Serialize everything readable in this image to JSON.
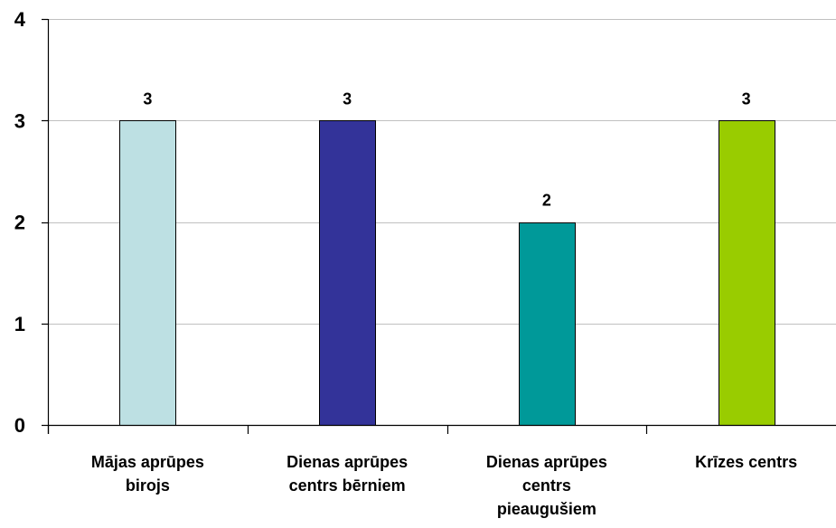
{
  "chart_data": {
    "type": "bar",
    "categories": [
      [
        "Mājas aprūpes",
        "birojs"
      ],
      [
        "Dienas aprūpes",
        "centrs bērniem"
      ],
      [
        "Dienas aprūpes",
        "centrs",
        "pieaugušiem"
      ],
      [
        "Krīzes centrs"
      ]
    ],
    "values": [
      3,
      3,
      2,
      3
    ],
    "data_labels": [
      "3",
      "3",
      "2",
      "3"
    ],
    "bar_colors": [
      "#bde0e3",
      "#333399",
      "#009999",
      "#99cc00"
    ],
    "ylim": [
      0,
      4
    ],
    "yticks": [
      0,
      1,
      2,
      3,
      4
    ],
    "ytick_labels": [
      "0",
      "1",
      "2",
      "3",
      "4"
    ],
    "grid": true,
    "grid_color": "#c0c0c0",
    "title": "",
    "xlabel": "",
    "ylabel": ""
  }
}
